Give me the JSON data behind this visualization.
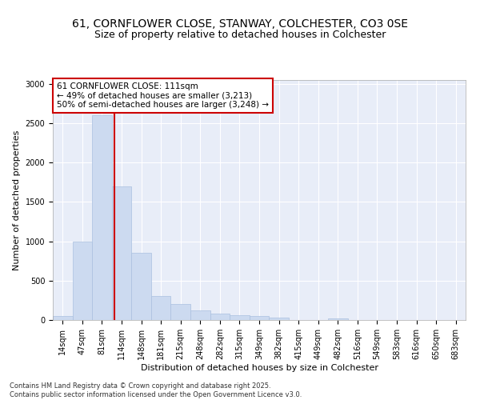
{
  "title_line1": "61, CORNFLOWER CLOSE, STANWAY, COLCHESTER, CO3 0SE",
  "title_line2": "Size of property relative to detached houses in Colchester",
  "xlabel": "Distribution of detached houses by size in Colchester",
  "ylabel": "Number of detached properties",
  "categories": [
    "14sqm",
    "47sqm",
    "81sqm",
    "114sqm",
    "148sqm",
    "181sqm",
    "215sqm",
    "248sqm",
    "282sqm",
    "315sqm",
    "349sqm",
    "382sqm",
    "415sqm",
    "449sqm",
    "482sqm",
    "516sqm",
    "549sqm",
    "583sqm",
    "616sqm",
    "650sqm",
    "683sqm"
  ],
  "values": [
    50,
    1000,
    2600,
    1700,
    850,
    300,
    200,
    120,
    85,
    60,
    55,
    30,
    0,
    0,
    20,
    0,
    0,
    0,
    0,
    0,
    0
  ],
  "bar_color": "#ccdaf0",
  "bar_edgecolor": "#aac0df",
  "vline_x_idx": 2.65,
  "vline_color": "#cc0000",
  "annotation_text": "61 CORNFLOWER CLOSE: 111sqm\n← 49% of detached houses are smaller (3,213)\n50% of semi-detached houses are larger (3,248) →",
  "annotation_box_facecolor": "#ffffff",
  "annotation_box_edgecolor": "#cc0000",
  "ylim": [
    0,
    3050
  ],
  "yticks": [
    0,
    500,
    1000,
    1500,
    2000,
    2500,
    3000
  ],
  "background_color": "#e8edf8",
  "footer_text": "Contains HM Land Registry data © Crown copyright and database right 2025.\nContains public sector information licensed under the Open Government Licence v3.0.",
  "title_fontsize": 10,
  "subtitle_fontsize": 9,
  "tick_fontsize": 7,
  "axis_label_fontsize": 8,
  "annotation_fontsize": 7.5,
  "footer_fontsize": 6
}
